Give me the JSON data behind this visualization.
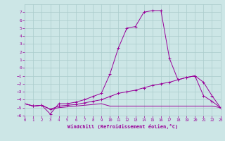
{
  "x": [
    0,
    1,
    2,
    3,
    4,
    5,
    6,
    7,
    8,
    9,
    10,
    11,
    12,
    13,
    14,
    15,
    16,
    17,
    18,
    19,
    20,
    21,
    22,
    23
  ],
  "line1": [
    -4.5,
    -4.8,
    -4.7,
    -5.8,
    -4.5,
    -4.5,
    -4.3,
    -4.0,
    -3.6,
    -3.2,
    -0.8,
    2.5,
    5.0,
    5.2,
    7.0,
    7.2,
    7.2,
    1.2,
    -1.5,
    -1.2,
    -1.0,
    -3.5,
    -4.2,
    -5.0
  ],
  "line2": [
    -4.5,
    -4.8,
    -4.7,
    -5.2,
    -4.8,
    -4.7,
    -4.6,
    -4.4,
    -4.2,
    -4.0,
    -3.6,
    -3.2,
    -3.0,
    -2.8,
    -2.5,
    -2.2,
    -2.0,
    -1.8,
    -1.5,
    -1.2,
    -1.0,
    -1.8,
    -3.5,
    -5.0
  ],
  "line3": [
    -4.5,
    -4.8,
    -4.7,
    -5.2,
    -5.0,
    -4.9,
    -4.8,
    -4.7,
    -4.6,
    -4.5,
    -4.8,
    -4.8,
    -4.8,
    -4.8,
    -4.8,
    -4.8,
    -4.8,
    -4.8,
    -4.8,
    -4.8,
    -4.8,
    -4.8,
    -4.8,
    -5.0
  ],
  "color": "#990099",
  "bg_color": "#cce6e6",
  "grid_color": "#aacccc",
  "xlabel": "Windchill (Refroidissement éolien,°C)",
  "ylim": [
    -6,
    8
  ],
  "xlim": [
    0,
    23
  ],
  "yticks": [
    7,
    6,
    5,
    4,
    3,
    2,
    1,
    0,
    -1,
    -2,
    -3,
    -4,
    -5,
    -6
  ],
  "xticks": [
    0,
    1,
    2,
    3,
    4,
    5,
    6,
    7,
    8,
    9,
    10,
    11,
    12,
    13,
    14,
    15,
    16,
    17,
    18,
    19,
    20,
    21,
    22,
    23
  ]
}
